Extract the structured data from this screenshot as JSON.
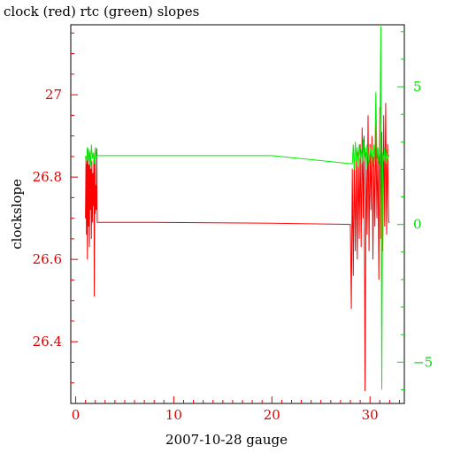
{
  "chart_data": {
    "type": "line",
    "title": "clock (red) rtc (green) slopes",
    "xlabel": "2007-10-28 gauge",
    "ylabel": "clockslope",
    "xlim": [
      -0.5,
      33.5
    ],
    "ylim_left": [
      26.25,
      27.17
    ],
    "ylim_right": [
      -6.5,
      7.25
    ],
    "x_ticks": [
      0,
      10,
      20,
      30
    ],
    "y_ticks_left": [
      26.4,
      26.6,
      26.8,
      27
    ],
    "y_ticks_right": [
      -5,
      0,
      5
    ],
    "colors": {
      "left_axis": "#e00000",
      "right_axis": "#00dd00",
      "clock": "#ff0000",
      "rtc": "#00ee00"
    },
    "series": [
      {
        "name": "clock",
        "axis": "left",
        "x": [
          1.0,
          1.05,
          1.1,
          1.15,
          1.2,
          1.25,
          1.3,
          1.35,
          1.4,
          1.45,
          1.5,
          1.55,
          1.6,
          1.65,
          1.7,
          1.75,
          1.8,
          1.85,
          1.9,
          1.95,
          2.0,
          2.05,
          2.1,
          2.15,
          2.2,
          8.0,
          20.0,
          28.0,
          28.1,
          28.2,
          28.3,
          28.4,
          28.5,
          28.6,
          28.7,
          28.8,
          28.9,
          29.0,
          29.1,
          29.2,
          29.3,
          29.4,
          29.5,
          29.6,
          29.7,
          29.8,
          29.9,
          30.0,
          30.1,
          30.2,
          30.3,
          30.4,
          30.5,
          30.6,
          30.7,
          30.8,
          30.9,
          31.0,
          31.1,
          31.2,
          31.3,
          31.4,
          31.5,
          31.6,
          31.7,
          31.8,
          31.9,
          32.0
        ],
        "values": [
          26.7,
          26.85,
          26.66,
          26.84,
          26.6,
          26.87,
          26.68,
          26.83,
          26.63,
          26.86,
          26.72,
          26.82,
          26.65,
          26.84,
          26.69,
          26.81,
          26.73,
          26.85,
          26.51,
          26.86,
          26.71,
          26.78,
          26.72,
          26.87,
          26.69,
          26.69,
          26.688,
          26.685,
          26.48,
          26.82,
          26.56,
          26.84,
          26.62,
          26.85,
          26.6,
          26.86,
          26.65,
          26.88,
          26.63,
          26.92,
          26.7,
          26.9,
          26.28,
          26.86,
          26.66,
          26.95,
          26.62,
          26.88,
          26.72,
          26.9,
          26.6,
          26.85,
          26.68,
          26.93,
          26.7,
          26.87,
          26.55,
          26.97,
          26.65,
          26.91,
          26.62,
          26.95,
          26.68,
          26.98,
          26.66,
          26.88,
          26.69,
          26.69
        ]
      },
      {
        "name": "rtc",
        "axis": "right",
        "x": [
          1.0,
          1.1,
          1.2,
          1.3,
          1.4,
          1.5,
          1.6,
          1.7,
          1.8,
          1.9,
          2.0,
          2.1,
          2.2,
          10.0,
          20.0,
          28.2,
          28.3,
          28.4,
          28.5,
          28.6,
          28.7,
          28.8,
          28.9,
          29.0,
          29.1,
          29.2,
          29.3,
          29.4,
          29.5,
          29.6,
          29.7,
          29.8,
          29.9,
          30.0,
          30.1,
          30.2,
          30.3,
          30.4,
          30.5,
          30.6,
          30.7,
          30.8,
          30.9,
          31.0,
          31.1,
          31.2,
          31.3,
          31.4,
          31.5,
          31.6,
          31.7,
          31.8,
          31.9,
          32.0
        ],
        "values": [
          2.5,
          2.2,
          2.8,
          2.3,
          2.7,
          2.1,
          2.9,
          2.4,
          2.6,
          2.2,
          2.8,
          2.4,
          2.5,
          2.5,
          2.5,
          2.2,
          2.9,
          2.0,
          3.0,
          2.3,
          2.8,
          2.1,
          2.9,
          2.4,
          2.7,
          2.2,
          3.1,
          2.3,
          2.8,
          2.0,
          2.9,
          2.5,
          2.2,
          2.8,
          2.4,
          2.7,
          2.1,
          2.9,
          2.3,
          4.8,
          2.4,
          2.8,
          2.2,
          2.7,
          7.2,
          -6.0,
          2.6,
          2.3,
          2.8,
          2.2,
          2.7,
          2.4,
          2.5,
          2.5
        ]
      }
    ]
  }
}
